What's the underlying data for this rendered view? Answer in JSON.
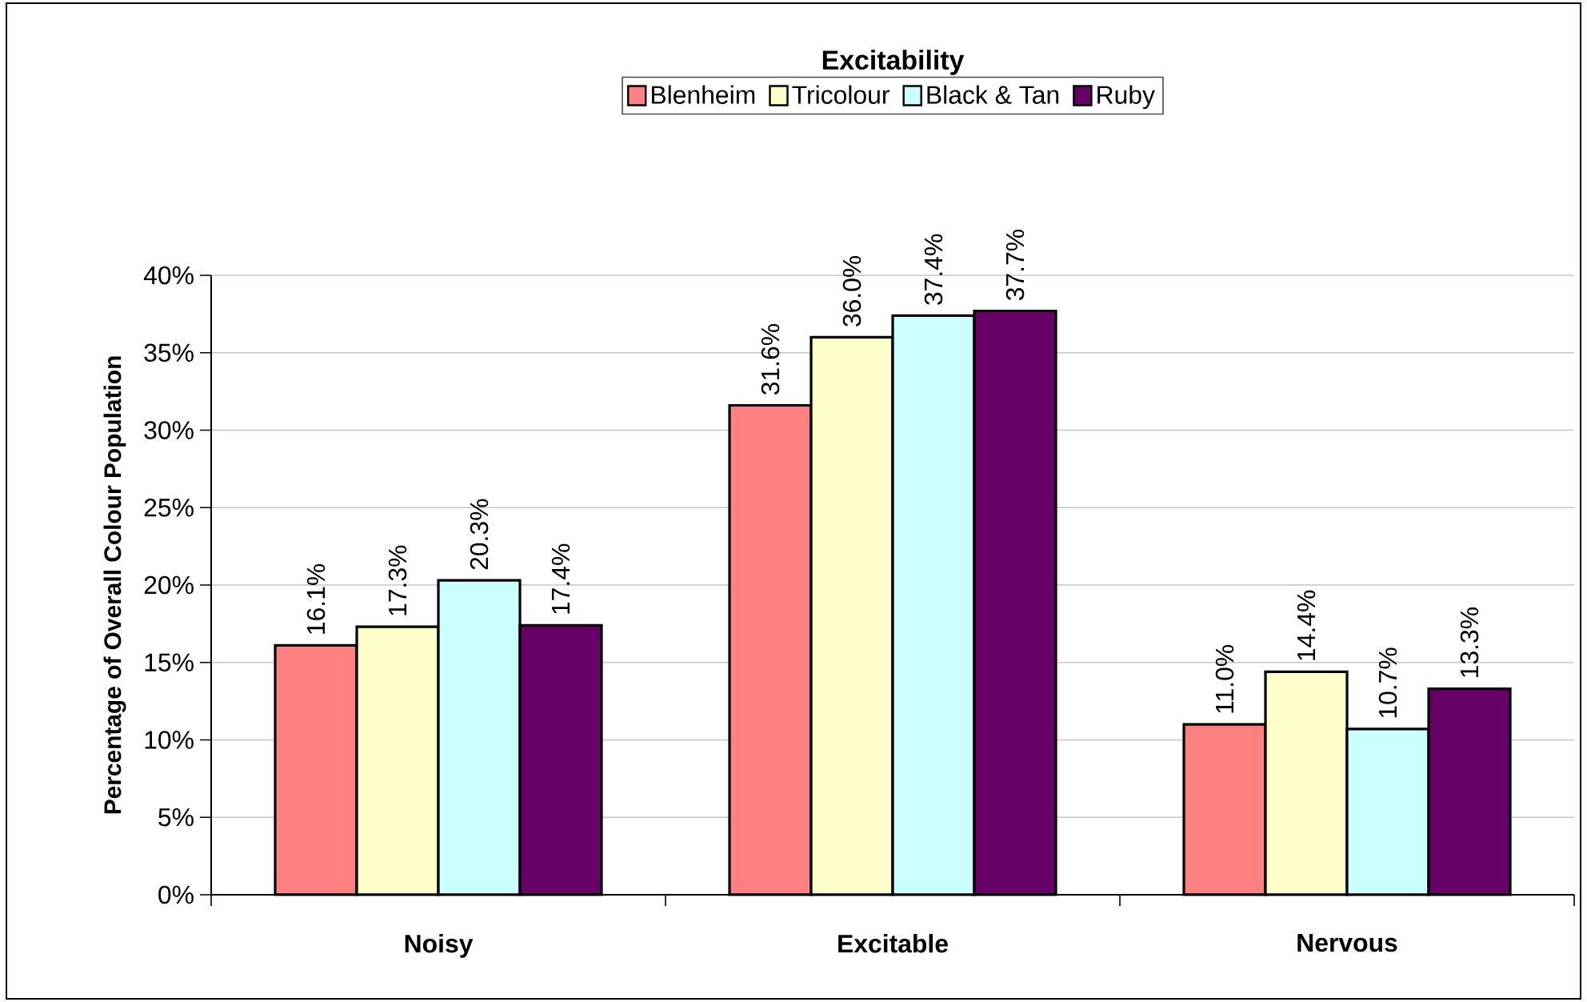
{
  "chart_data": {
    "type": "bar",
    "title": "Excitability",
    "ylabel": "Percentage of Overall Colour Population",
    "categories": [
      "Noisy",
      "Excitable",
      "Nervous"
    ],
    "series": [
      {
        "name": "Blenheim",
        "color": "#ff8080",
        "values": [
          16.1,
          31.6,
          11.0
        ],
        "value_labels": [
          "16.1%",
          "31.6%",
          "11.0%"
        ]
      },
      {
        "name": "Tricolour",
        "color": "#ffffcc",
        "values": [
          17.3,
          36.0,
          14.4
        ],
        "value_labels": [
          "17.3%",
          "36.0%",
          "14.4%"
        ]
      },
      {
        "name": "Black & Tan",
        "color": "#ccffff",
        "values": [
          20.3,
          37.4,
          10.7
        ],
        "value_labels": [
          "20.3%",
          "37.4%",
          "10.7%"
        ]
      },
      {
        "name": "Ruby",
        "color": "#660066",
        "values": [
          17.4,
          37.7,
          13.3
        ],
        "value_labels": [
          "17.4%",
          "37.7%",
          "13.3%"
        ]
      }
    ],
    "ylim": [
      0,
      40
    ],
    "yticks": [
      {
        "value": 0,
        "label": "0%"
      },
      {
        "value": 5,
        "label": "5%"
      },
      {
        "value": 10,
        "label": "10%"
      },
      {
        "value": 15,
        "label": "15%"
      },
      {
        "value": 20,
        "label": "20%"
      },
      {
        "value": 25,
        "label": "25%"
      },
      {
        "value": 30,
        "label": "30%"
      },
      {
        "value": 35,
        "label": "35%"
      },
      {
        "value": 40,
        "label": "40%"
      }
    ],
    "grid": "y",
    "legend": "top"
  }
}
